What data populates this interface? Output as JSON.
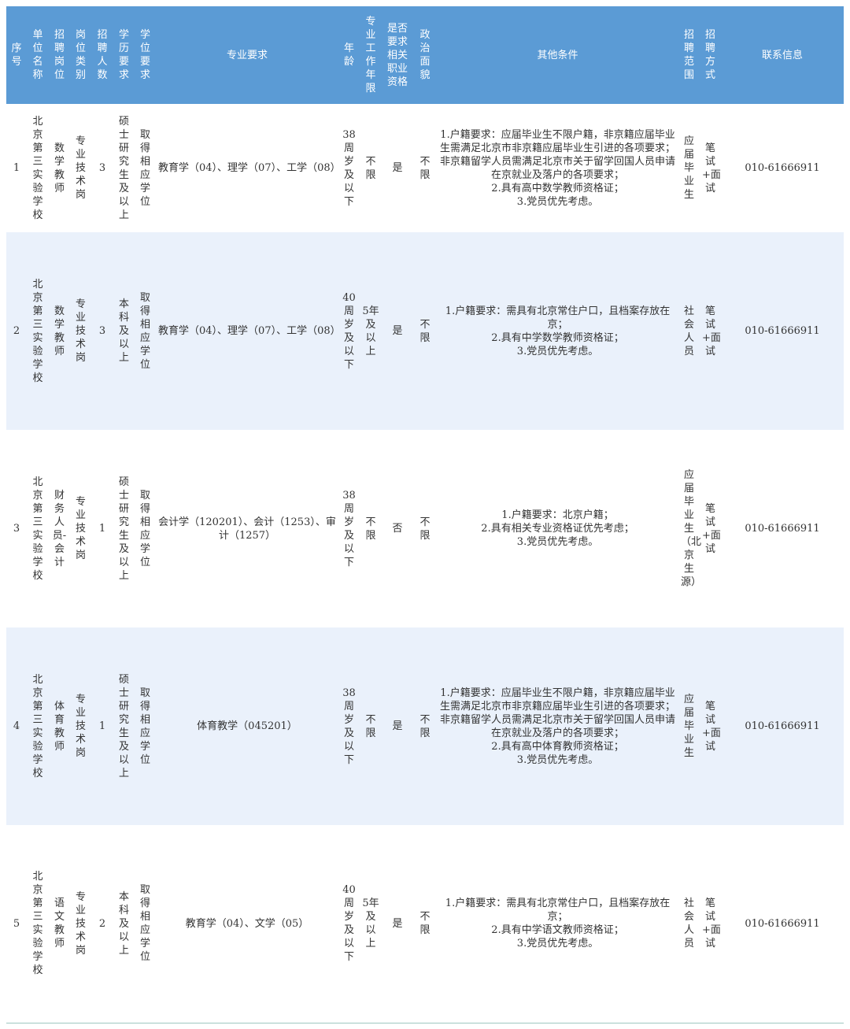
{
  "table": {
    "headers": [
      "序号",
      "单位名称",
      "招聘岗位",
      "岗位类别",
      "招聘人数",
      "学历要求",
      "学位要求",
      "专业要求",
      "年龄",
      "专业工作年限",
      "是否要求相关职业资格",
      "政治面貌",
      "其他条件",
      "招聘范围",
      "招聘方式",
      "联系信息"
    ],
    "rows": [
      [
        "1",
        "北京第三实验学校",
        "数学教师",
        "专业技术岗",
        "3",
        "硕士研究生及以上",
        "取得相应学位",
        "教育学（04）、理学（07）、工学（08）",
        "38周岁及以下",
        "不限",
        "是",
        "不限",
        "1.户籍要求：应届毕业生不限户籍，非京籍应届毕业生需满足北京市非京籍应届毕业生引进的各项要求；非京籍留学人员需满足北京市关于留学回国人员申请在京就业及落户的各项要求；\n2.具有高中数学教师资格证；\n3.党员优先考虑。",
        "应届毕业生",
        "笔试+面试",
        "010-61666911"
      ],
      [
        "2",
        "北京第三实验学校",
        "数学教师",
        "专业技术岗",
        "3",
        "本科及以上",
        "取得相应学位",
        "教育学（04）、理学（07）、工学（08）",
        "40周岁及以下",
        "5年及以上",
        "是",
        "不限",
        "1.户籍要求：需具有北京常住户口，且档案存放在京；\n2.具有中学数学教师资格证；\n3.党员优先考虑。",
        "社会人员",
        "笔试+面试",
        "010-61666911"
      ],
      [
        "3",
        "北京第三实验学校",
        "财务人员-会计",
        "专业技术岗",
        "1",
        "硕士研究生及以上",
        "取得相应学位",
        "会计学（120201）、会计（1253）、审计（1257）",
        "38周岁及以下",
        "不限",
        "否",
        "不限",
        "1.户籍要求：北京户籍；\n2.具有相关专业资格证优先考虑；\n3.党员优先考虑。",
        "应届毕业生（北京生源）",
        "笔试+面试",
        "010-61666911"
      ],
      [
        "4",
        "北京第三实验学校",
        "体育教师",
        "专业技术岗",
        "1",
        "硕士研究生及以上",
        "取得相应学位",
        "体育教学（045201）",
        "38周岁及以下",
        "不限",
        "是",
        "不限",
        "1.户籍要求：应届毕业生不限户籍，非京籍应届毕业生需满足北京市非京籍应届毕业生引进的各项要求；非京籍留学人员需满足北京市关于留学回国人员申请在京就业及落户的各项要求；\n2.具有高中体育教师资格证；\n3.党员优先考虑。",
        "应届毕业生",
        "笔试+面试",
        "010-61666911"
      ],
      [
        "5",
        "北京第三实验学校",
        "语文教师",
        "专业技术岗",
        "2",
        "本科及以上",
        "取得相应学位",
        "教育学（04）、文学（05）",
        "40周岁及以下",
        "5年及以上",
        "是",
        "不限",
        "1.户籍要求：需具有北京常住户口，且档案存放在京；\n2.具有中学语文教师资格证；\n3.党员优先考虑。",
        "社会人员",
        "笔试+面试",
        "010-61666911"
      ]
    ]
  }
}
